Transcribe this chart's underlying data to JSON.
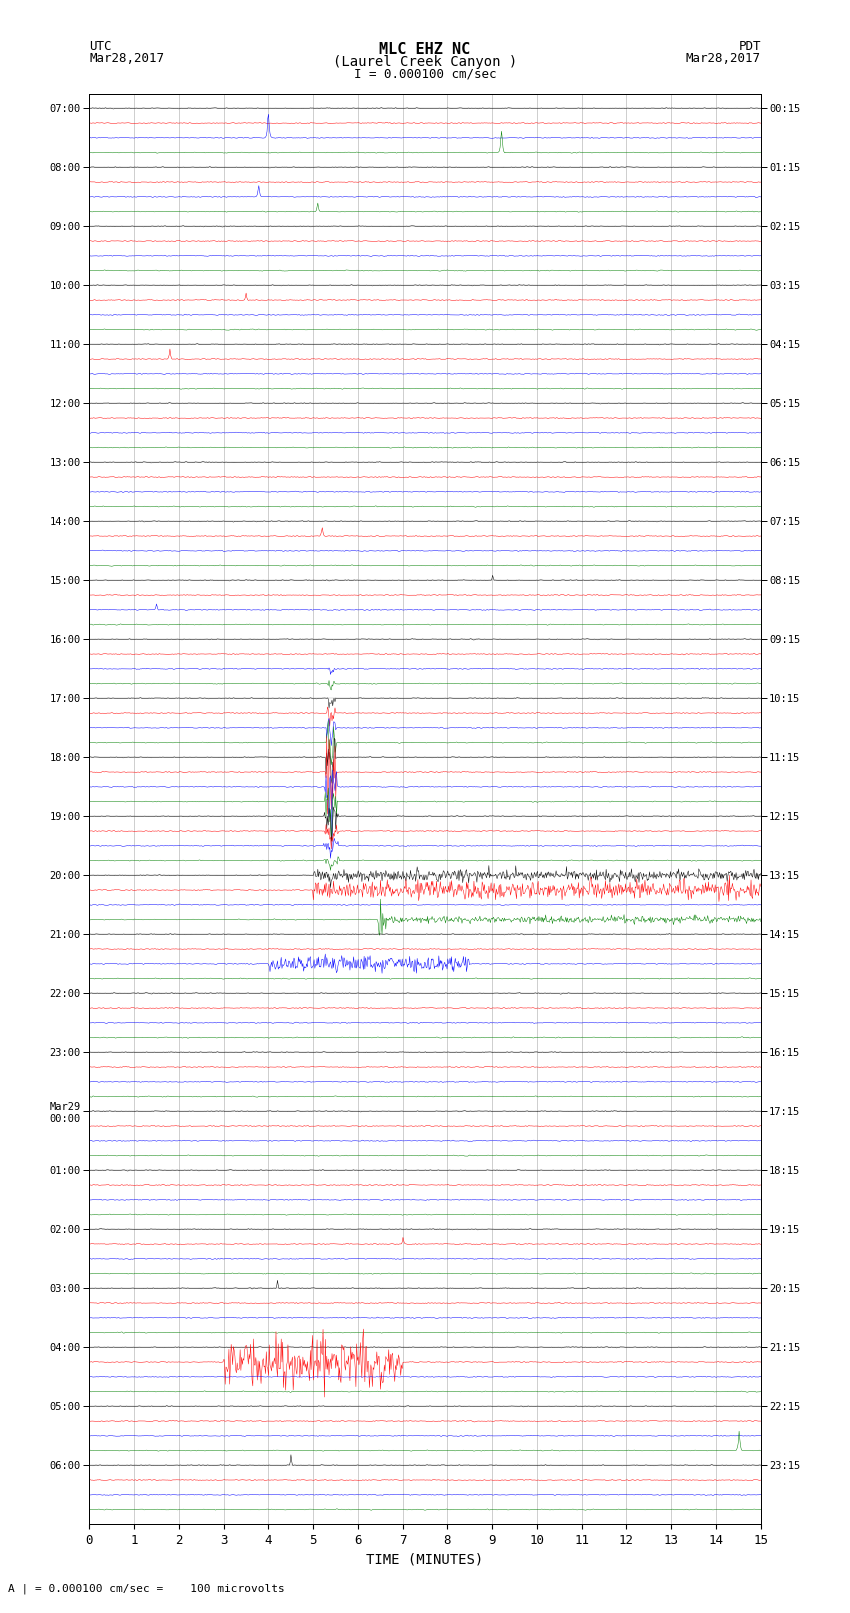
{
  "title_line1": "MLC EHZ NC",
  "title_line2": "(Laurel Creek Canyon )",
  "title_line3": "I = 0.000100 cm/sec",
  "xlabel": "TIME (MINUTES)",
  "bottom_note": "A | = 0.000100 cm/sec =    100 microvolts",
  "xlim": [
    0,
    15
  ],
  "xticks": [
    0,
    1,
    2,
    3,
    4,
    5,
    6,
    7,
    8,
    9,
    10,
    11,
    12,
    13,
    14,
    15
  ],
  "fig_width": 8.5,
  "fig_height": 16.13,
  "bg_color": "#ffffff",
  "trace_colors": [
    "black",
    "red",
    "blue",
    "green"
  ],
  "utc_labels": [
    "07:00",
    "08:00",
    "09:00",
    "10:00",
    "11:00",
    "12:00",
    "13:00",
    "14:00",
    "15:00",
    "16:00",
    "17:00",
    "18:00",
    "19:00",
    "20:00",
    "21:00",
    "22:00",
    "23:00",
    "Mar29\n00:00",
    "01:00",
    "02:00",
    "03:00",
    "04:00",
    "05:00",
    "06:00"
  ],
  "pdt_labels": [
    "00:15",
    "01:15",
    "02:15",
    "03:15",
    "04:15",
    "05:15",
    "06:15",
    "07:15",
    "08:15",
    "09:15",
    "10:15",
    "11:15",
    "12:15",
    "13:15",
    "14:15",
    "15:15",
    "16:15",
    "17:15",
    "18:15",
    "19:15",
    "20:15",
    "21:15",
    "22:15",
    "23:15"
  ],
  "n_hour_groups": 24,
  "traces_per_hour": 4,
  "noise_amp": 0.06,
  "seed": 12345,
  "amp_scale": 0.38
}
